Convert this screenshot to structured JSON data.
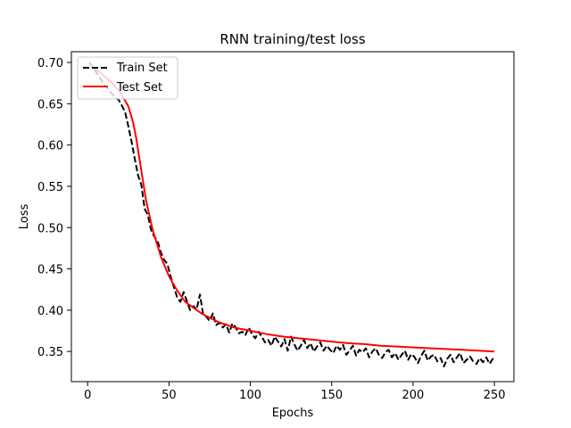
{
  "chart_data": {
    "type": "line",
    "title": "RNN training/test loss",
    "xlabel": "Epochs",
    "ylabel": "Loss",
    "xlim": [
      -10,
      262
    ],
    "ylim": [
      0.3135,
      0.713
    ],
    "xticks": [
      0,
      50,
      100,
      150,
      200,
      250
    ],
    "yticks": [
      0.35,
      0.4,
      0.45,
      0.5,
      0.55,
      0.6,
      0.65,
      0.7
    ],
    "ytick_labels": [
      "0.35",
      "0.40",
      "0.45",
      "0.50",
      "0.55",
      "0.60",
      "0.65",
      "0.70"
    ],
    "grid": false,
    "legend": "top-left",
    "series": [
      {
        "name": "Train Set",
        "color": "#000000",
        "style": "dashed",
        "x": [
          1,
          3,
          5,
          7,
          9,
          11,
          13,
          15,
          17,
          19,
          21,
          23,
          25,
          27,
          29,
          31,
          33,
          35,
          37,
          39,
          41,
          43,
          45,
          47,
          49,
          51,
          53,
          55,
          57,
          59,
          61,
          63,
          65,
          67,
          69,
          71,
          73,
          75,
          77,
          79,
          81,
          83,
          85,
          87,
          89,
          91,
          93,
          95,
          97,
          99,
          101,
          103,
          105,
          107,
          109,
          111,
          113,
          115,
          117,
          119,
          121,
          123,
          125,
          127,
          129,
          131,
          133,
          135,
          137,
          139,
          141,
          143,
          145,
          147,
          149,
          151,
          153,
          155,
          157,
          159,
          161,
          163,
          165,
          167,
          169,
          171,
          173,
          175,
          177,
          179,
          181,
          183,
          185,
          187,
          189,
          191,
          193,
          195,
          197,
          199,
          201,
          203,
          205,
          207,
          209,
          211,
          213,
          215,
          217,
          219,
          221,
          223,
          225,
          227,
          229,
          231,
          233,
          235,
          237,
          239,
          241,
          243,
          245,
          247,
          249,
          250
        ],
        "values": [
          0.7,
          0.695,
          0.689,
          0.683,
          0.677,
          0.672,
          0.666,
          0.662,
          0.657,
          0.655,
          0.648,
          0.64,
          0.623,
          0.604,
          0.583,
          0.563,
          0.552,
          0.523,
          0.515,
          0.497,
          0.489,
          0.484,
          0.47,
          0.461,
          0.456,
          0.441,
          0.428,
          0.416,
          0.41,
          0.422,
          0.411,
          0.4,
          0.405,
          0.401,
          0.419,
          0.395,
          0.392,
          0.387,
          0.396,
          0.382,
          0.385,
          0.379,
          0.383,
          0.373,
          0.384,
          0.379,
          0.372,
          0.374,
          0.37,
          0.379,
          0.371,
          0.366,
          0.374,
          0.368,
          0.361,
          0.364,
          0.357,
          0.368,
          0.362,
          0.356,
          0.365,
          0.351,
          0.368,
          0.359,
          0.351,
          0.357,
          0.364,
          0.354,
          0.36,
          0.35,
          0.356,
          0.361,
          0.351,
          0.357,
          0.352,
          0.348,
          0.357,
          0.352,
          0.358,
          0.346,
          0.351,
          0.357,
          0.345,
          0.352,
          0.349,
          0.354,
          0.343,
          0.35,
          0.354,
          0.346,
          0.342,
          0.349,
          0.352,
          0.343,
          0.348,
          0.34,
          0.346,
          0.351,
          0.34,
          0.347,
          0.343,
          0.336,
          0.345,
          0.351,
          0.339,
          0.344,
          0.346,
          0.338,
          0.342,
          0.332,
          0.341,
          0.346,
          0.337,
          0.343,
          0.348,
          0.336,
          0.34,
          0.344,
          0.338,
          0.335,
          0.342,
          0.337,
          0.343,
          0.335,
          0.341,
          0.339
        ]
      },
      {
        "name": "Test Set",
        "color": "#ff0000",
        "style": "solid",
        "x": [
          1,
          5,
          10,
          15,
          20,
          25,
          28,
          30,
          33,
          36,
          40,
          45,
          50,
          55,
          60,
          70,
          80,
          90,
          100,
          110,
          120,
          130,
          140,
          150,
          160,
          170,
          180,
          190,
          200,
          210,
          220,
          230,
          240,
          250
        ],
        "values": [
          0.698,
          0.692,
          0.684,
          0.675,
          0.664,
          0.647,
          0.627,
          0.607,
          0.569,
          0.532,
          0.497,
          0.465,
          0.441,
          0.424,
          0.41,
          0.396,
          0.386,
          0.379,
          0.375,
          0.371,
          0.368,
          0.366,
          0.364,
          0.362,
          0.36,
          0.359,
          0.357,
          0.356,
          0.355,
          0.354,
          0.353,
          0.352,
          0.351,
          0.35
        ]
      }
    ]
  }
}
